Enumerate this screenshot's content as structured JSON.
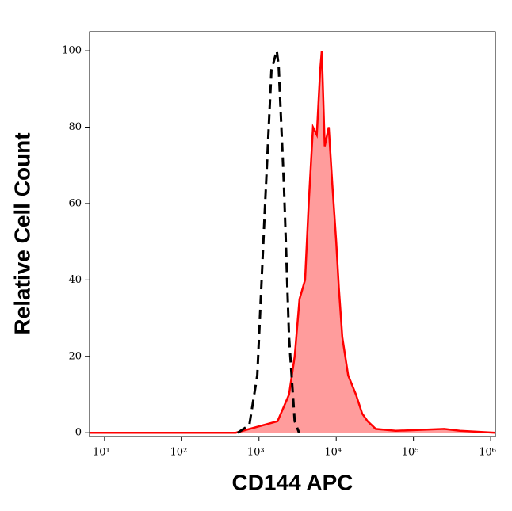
{
  "chart_data": {
    "type": "histogram-overlay",
    "x_label": "CD144 APC",
    "y_label": "Relative Cell Count",
    "xscale": "log",
    "xlim": [
      6.4,
      1150000
    ],
    "ylim": [
      -1,
      105
    ],
    "xticks": [
      {
        "value": 10,
        "label": "10¹"
      },
      {
        "value": 100,
        "label": "10²"
      },
      {
        "value": 1000,
        "label": "10³"
      },
      {
        "value": 10000,
        "label": "10⁴"
      },
      {
        "value": 100000,
        "label": "10⁵"
      },
      {
        "value": 1000000,
        "label": "10⁶"
      }
    ],
    "yticks": [
      0,
      20,
      40,
      60,
      80,
      100
    ],
    "series": [
      {
        "color": "#ff0000",
        "fill": "#ff9c9c",
        "dashed": false,
        "x": [
          6.4,
          500,
          1740,
          2450,
          2900,
          3350,
          3950,
          4400,
          5000,
          5600,
          6200,
          6500,
          7100,
          8000,
          8900,
          10000,
          10800,
          12000,
          14300,
          18000,
          21700,
          25500,
          32500,
          59000,
          250000,
          400000,
          1150000
        ],
        "values": [
          0,
          0,
          3,
          10,
          20,
          35,
          40,
          60,
          80,
          78,
          95,
          100,
          75,
          80,
          65,
          50,
          38,
          25,
          15,
          10,
          5,
          3,
          1,
          0.5,
          1,
          0.5,
          0
        ]
      },
      {
        "color": "#000000",
        "fill": null,
        "dashed": true,
        "x": [
          530,
          750,
          950,
          1200,
          1450,
          1700,
          1800,
          2100,
          2450,
          2900,
          3300
        ],
        "values": [
          0,
          2,
          15,
          60,
          95,
          100,
          96,
          65,
          25,
          3,
          0
        ]
      }
    ]
  }
}
